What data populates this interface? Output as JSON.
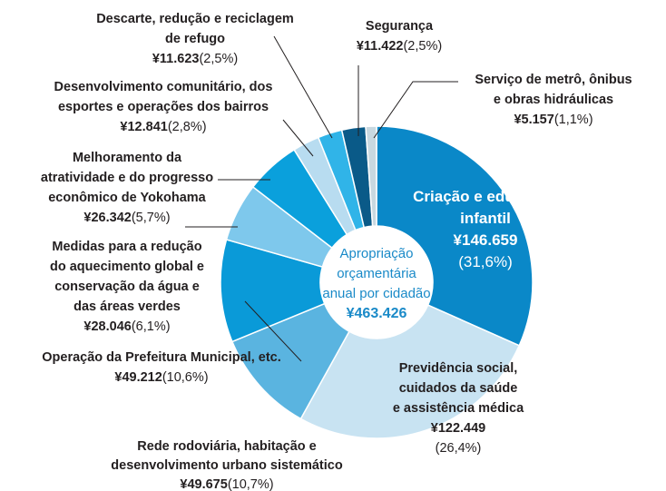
{
  "chart_data": {
    "type": "pie",
    "categories": [
      [
        "Criação e educação",
        "infantil"
      ],
      [
        "Previdência social,",
        "cuidados da saúde",
        "e assistência médica"
      ],
      [
        "Rede rodoviária, habitação e",
        "desenvolvimento urbano sistemático"
      ],
      [
        "Operação da Prefeitura Municipal, etc."
      ],
      [
        "Medidas para a redução",
        "do aquecimento global e",
        "conservação da água e",
        "das áreas verdes"
      ],
      [
        "Melhoramento da",
        "atratividade e do progresso",
        "econômico de Yokohama"
      ],
      [
        "Desenvolvimento comunitário, dos",
        "esportes e operações dos bairros"
      ],
      [
        "Descarte, redução e reciclagem",
        "de refugo"
      ],
      [
        "Segurança"
      ],
      [
        "Serviço de metrô, ônibus",
        "e obras hidráulicas"
      ]
    ],
    "values": [
      146659,
      122449,
      49675,
      49212,
      28046,
      26342,
      12841,
      11623,
      11422,
      5157
    ],
    "value_labels": [
      "¥146.659",
      "¥122.449",
      "¥49.675",
      "¥49.212",
      "¥28.046",
      "¥26.342",
      "¥12.841",
      "¥11.623",
      "¥11.422",
      "¥5.157"
    ],
    "percent_labels": [
      "(31,6%)",
      "(26,4%)",
      "(10,7%)",
      "(10,6%)",
      "(6,1%)",
      "(5,7%)",
      "(2,8%)",
      "(2,5%)",
      "(2,5%)",
      "(1,1%)"
    ],
    "colors": [
      "#0a88c8",
      "#c8e3f2",
      "#5ab4e0",
      "#0a9ad8",
      "#7ec8ec",
      "#0aa0dc",
      "#b8dcf0",
      "#30b4e8",
      "#0a5a88",
      "#c8d8e0"
    ],
    "donut": true,
    "center_label": [
      "Apropriação",
      "orçamentária",
      "anual por cidadão"
    ],
    "center_value": "¥463.426"
  }
}
